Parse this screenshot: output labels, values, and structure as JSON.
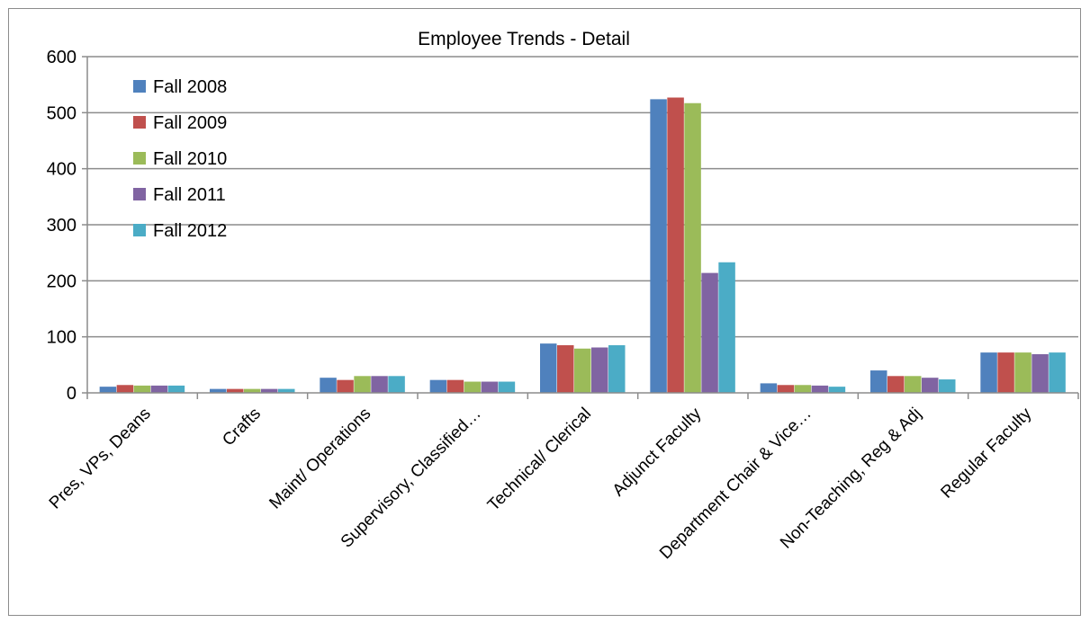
{
  "chart_data": {
    "type": "bar",
    "title": "Employee Trends - Detail",
    "xlabel": "",
    "ylabel": "",
    "ylim": [
      0,
      600
    ],
    "yticks": [
      0,
      100,
      200,
      300,
      400,
      500,
      600
    ],
    "grid": true,
    "legend_position": "top-left",
    "categories": [
      "Pres, VPs, Deans",
      "Crafts",
      "Maint/ Operations",
      "Supervisory, Classified…",
      "Technical/ Clerical",
      "Adjunct Faculty",
      "Department Chair & Vice…",
      "Non-Teaching, Reg & Adj",
      "Regular Faculty"
    ],
    "series": [
      {
        "name": "Fall 2008",
        "color": "#4F81BD",
        "values": [
          11,
          7,
          27,
          23,
          88,
          524,
          17,
          40,
          72
        ]
      },
      {
        "name": "Fall 2009",
        "color": "#C0504D",
        "values": [
          14,
          7,
          23,
          23,
          85,
          527,
          14,
          30,
          72
        ]
      },
      {
        "name": "Fall 2010",
        "color": "#9BBB59",
        "values": [
          13,
          7,
          30,
          20,
          79,
          517,
          14,
          30,
          72
        ]
      },
      {
        "name": "Fall 2011",
        "color": "#8064A2",
        "values": [
          13,
          7,
          30,
          20,
          81,
          214,
          13,
          27,
          69
        ]
      },
      {
        "name": "Fall 2012",
        "color": "#4BACC6",
        "values": [
          13,
          7,
          30,
          20,
          85,
          233,
          11,
          24,
          72
        ]
      }
    ]
  }
}
